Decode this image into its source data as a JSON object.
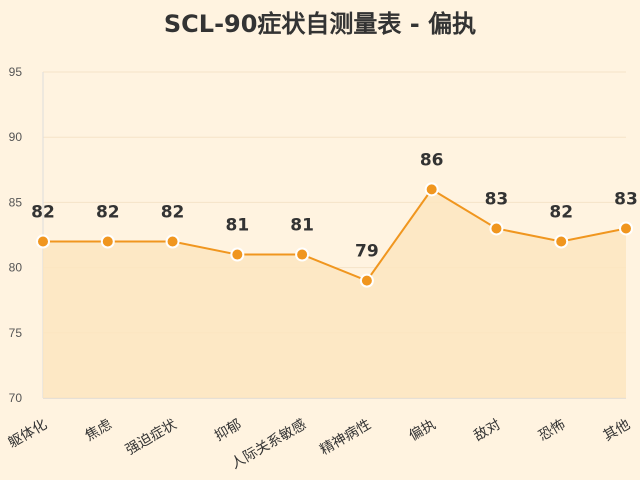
{
  "chart_data": {
    "type": "area",
    "title": "SCL-90症状自测量表 - 偏执",
    "categories": [
      "躯体化",
      "焦虑",
      "强迫症状",
      "抑郁",
      "人际关系敏感",
      "精神病性",
      "偏执",
      "敌对",
      "恐怖",
      "其他"
    ],
    "series": [
      {
        "values": [
          82,
          82,
          82,
          81,
          81,
          79,
          86,
          83,
          82,
          83
        ]
      }
    ],
    "ylim": [
      70,
      95
    ],
    "yticks": [
      70,
      75,
      80,
      85,
      90,
      95
    ],
    "grid": true,
    "legend": "none",
    "colors": {
      "line": "#f0961f",
      "area": "#fde5c0",
      "point_stroke": "#ffffff",
      "grid": "#f5e3c8",
      "background": "#fff3e0"
    }
  }
}
